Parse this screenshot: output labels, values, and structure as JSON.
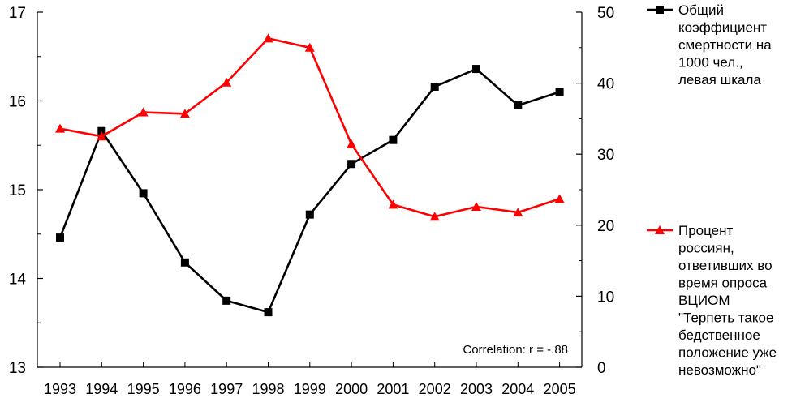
{
  "chart_data": {
    "type": "line",
    "title": "",
    "xlabel": "",
    "categories": [
      "1993",
      "1994",
      "1995",
      "1996",
      "1997",
      "1998",
      "1999",
      "2000",
      "2001",
      "2002",
      "2003",
      "2004",
      "2005"
    ],
    "y_left": {
      "label": "",
      "min": 13,
      "max": 17,
      "ticks": [
        "13",
        "14",
        "15",
        "16",
        "17"
      ]
    },
    "y_right": {
      "label": "",
      "min": 0,
      "max": 50,
      "ticks": [
        "0",
        "10",
        "20",
        "30",
        "40",
        "50"
      ]
    },
    "grid": false,
    "series": [
      {
        "name": "Общий коэффициент смертности на 1000 чел., левая шкала",
        "legend_lines": [
          "Общий",
          "коэффициент",
          "смертности на",
          "1000 чел.,",
          "левая шкала"
        ],
        "axis": "left",
        "color": "#000000",
        "marker": "square",
        "values": [
          14.46,
          15.66,
          14.96,
          14.18,
          13.75,
          13.62,
          14.72,
          15.29,
          15.56,
          16.16,
          16.36,
          15.95,
          16.1
        ]
      },
      {
        "name": "Процент россиян, ответивших во время опроса ВЦИОМ \"Терпеть такое бедственное положение уже невозможно\"",
        "legend_lines": [
          "Процент",
          "россиян,",
          "ответивших во",
          "время опроса",
          "ВЦИОМ",
          "\"Терпеть такое",
          "бедственное",
          "положение уже",
          "невозможно\""
        ],
        "axis": "right",
        "color": "#ff0000",
        "marker": "triangle",
        "values": [
          33.6,
          32.5,
          35.9,
          35.7,
          40.1,
          46.3,
          45.0,
          31.4,
          22.9,
          21.2,
          22.6,
          21.8,
          23.7
        ]
      }
    ],
    "annotation": "Correlation: r = -.88",
    "legend_position": "right"
  }
}
